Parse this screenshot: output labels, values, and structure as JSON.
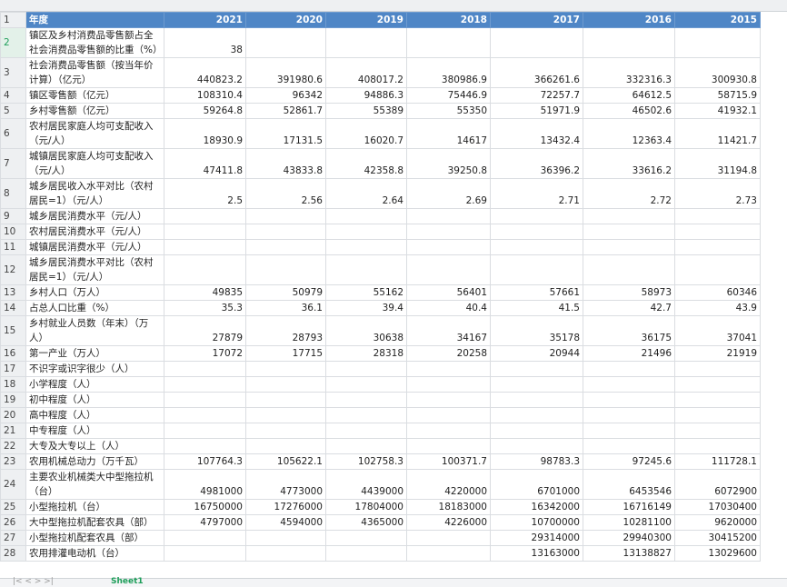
{
  "header": {
    "label": "年度",
    "years": [
      2021,
      2020,
      2019,
      2018,
      2017,
      2016,
      2015
    ]
  },
  "row_numbers": [
    1,
    2,
    3,
    4,
    5,
    6,
    7,
    8,
    9,
    10,
    11,
    12,
    13,
    14,
    15,
    16,
    17,
    18,
    19,
    20,
    21,
    22,
    23,
    24,
    25,
    26,
    27,
    28
  ],
  "rows": [
    {
      "label": "镇区及乡村消费品零售额占全社会消费品零售额的比重（%）",
      "values": [
        38,
        null,
        null,
        null,
        null,
        null,
        null
      ]
    },
    {
      "label": "社会消费品零售额（按当年价计算）（亿元）",
      "values": [
        440823.2,
        391980.6,
        408017.2,
        380986.9,
        366261.6,
        332316.3,
        300930.8
      ]
    },
    {
      "label": "镇区零售额（亿元）",
      "values": [
        108310.4,
        96342,
        94886.3,
        75446.9,
        72257.7,
        64612.5,
        58715.9
      ]
    },
    {
      "label": "乡村零售额（亿元）",
      "values": [
        59264.8,
        52861.7,
        55389,
        55350,
        51971.9,
        46502.6,
        41932.1
      ]
    },
    {
      "label": "农村居民家庭人均可支配收入（元/人）",
      "values": [
        18930.9,
        17131.5,
        16020.7,
        14617,
        13432.4,
        12363.4,
        11421.7
      ]
    },
    {
      "label": "城镇居民家庭人均可支配收入（元/人）",
      "values": [
        47411.8,
        43833.8,
        42358.8,
        39250.8,
        36396.2,
        33616.2,
        31194.8
      ]
    },
    {
      "label": "城乡居民收入水平对比（农村居民=1）（元/人）",
      "values": [
        2.5,
        2.56,
        2.64,
        2.69,
        2.71,
        2.72,
        2.73
      ]
    },
    {
      "label": "城乡居民消费水平（元/人）",
      "values": [
        null,
        null,
        null,
        null,
        null,
        null,
        null
      ]
    },
    {
      "label": "农村居民消费水平（元/人）",
      "values": [
        null,
        null,
        null,
        null,
        null,
        null,
        null
      ]
    },
    {
      "label": "城镇居民消费水平（元/人）",
      "values": [
        null,
        null,
        null,
        null,
        null,
        null,
        null
      ]
    },
    {
      "label": "城乡居民消费水平对比（农村居民=1）（元/人）",
      "values": [
        null,
        null,
        null,
        null,
        null,
        null,
        null
      ]
    },
    {
      "label": "乡村人口（万人）",
      "values": [
        49835,
        50979,
        55162,
        56401,
        57661,
        58973,
        60346
      ]
    },
    {
      "label": "占总人口比重（%）",
      "values": [
        35.3,
        36.1,
        39.4,
        40.4,
        41.5,
        42.7,
        43.9
      ]
    },
    {
      "label": "乡村就业人员数（年末）（万人）",
      "values": [
        27879,
        28793,
        30638,
        34167,
        35178,
        36175,
        37041
      ]
    },
    {
      "label": "第一产业（万人）",
      "values": [
        17072,
        17715,
        28318,
        20258,
        20944,
        21496,
        21919
      ]
    },
    {
      "label": "不识字或识字很少（人）",
      "values": [
        null,
        null,
        null,
        null,
        null,
        null,
        null
      ]
    },
    {
      "label": "小学程度（人）",
      "values": [
        null,
        null,
        null,
        null,
        null,
        null,
        null
      ]
    },
    {
      "label": "初中程度（人）",
      "values": [
        null,
        null,
        null,
        null,
        null,
        null,
        null
      ]
    },
    {
      "label": "高中程度（人）",
      "values": [
        null,
        null,
        null,
        null,
        null,
        null,
        null
      ]
    },
    {
      "label": "中专程度（人）",
      "values": [
        null,
        null,
        null,
        null,
        null,
        null,
        null
      ]
    },
    {
      "label": "大专及大专以上（人）",
      "values": [
        null,
        null,
        null,
        null,
        null,
        null,
        null
      ]
    },
    {
      "label": "农用机械总动力（万千瓦）",
      "values": [
        107764.3,
        105622.1,
        102758.3,
        100371.7,
        98783.3,
        97245.6,
        111728.1
      ]
    },
    {
      "label": "主要农业机械类大中型拖拉机（台）",
      "values": [
        4981000,
        4773000,
        4439000,
        4220000,
        6701000,
        6453546,
        6072900
      ]
    },
    {
      "label": "小型拖拉机（台）",
      "values": [
        16750000,
        17276000,
        17804000,
        18183000,
        16342000,
        16716149,
        17030400
      ]
    },
    {
      "label": "大中型拖拉机配套农具（部）",
      "values": [
        4797000,
        4594000,
        4365000,
        4226000,
        10700000,
        10281100,
        9620000
      ]
    },
    {
      "label": "小型拖拉机配套农具（部）",
      "values": [
        null,
        null,
        null,
        null,
        29314000,
        29940300,
        30415200
      ]
    },
    {
      "label": "农用排灌电动机（台）",
      "values": [
        null,
        null,
        null,
        null,
        13163000,
        13138827,
        13029600
      ]
    }
  ],
  "sheet_tab": "Sheet1"
}
